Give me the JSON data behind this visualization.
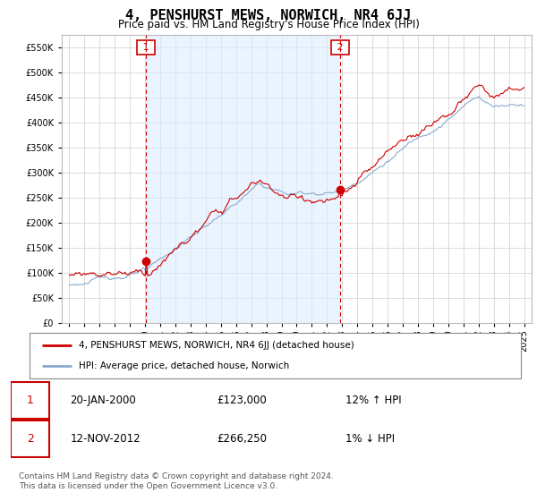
{
  "title": "4, PENSHURST MEWS, NORWICH, NR4 6JJ",
  "subtitle": "Price paid vs. HM Land Registry's House Price Index (HPI)",
  "legend_line1": "4, PENSHURST MEWS, NORWICH, NR4 6JJ (detached house)",
  "legend_line2": "HPI: Average price, detached house, Norwich",
  "transaction1_date": "20-JAN-2000",
  "transaction1_price": "£123,000",
  "transaction1_hpi": "12% ↑ HPI",
  "transaction1_year": 2000.05,
  "transaction1_value": 123000,
  "transaction2_date": "12-NOV-2012",
  "transaction2_price": "£266,250",
  "transaction2_hpi": "1% ↓ HPI",
  "transaction2_year": 2012.87,
  "transaction2_value": 266250,
  "footer_line1": "Contains HM Land Registry data © Crown copyright and database right 2024.",
  "footer_line2": "This data is licensed under the Open Government Licence v3.0.",
  "ylim": [
    0,
    575000
  ],
  "yticks": [
    0,
    50000,
    100000,
    150000,
    200000,
    250000,
    300000,
    350000,
    400000,
    450000,
    500000,
    550000
  ],
  "background_color": "#ffffff",
  "grid_color": "#cccccc",
  "fill_color": "#ddeeff",
  "line_color_red": "#cc0000",
  "line_color_blue": "#88aacc",
  "marker_box_color": "#cc0000",
  "xstart": 1995,
  "xend": 2025
}
